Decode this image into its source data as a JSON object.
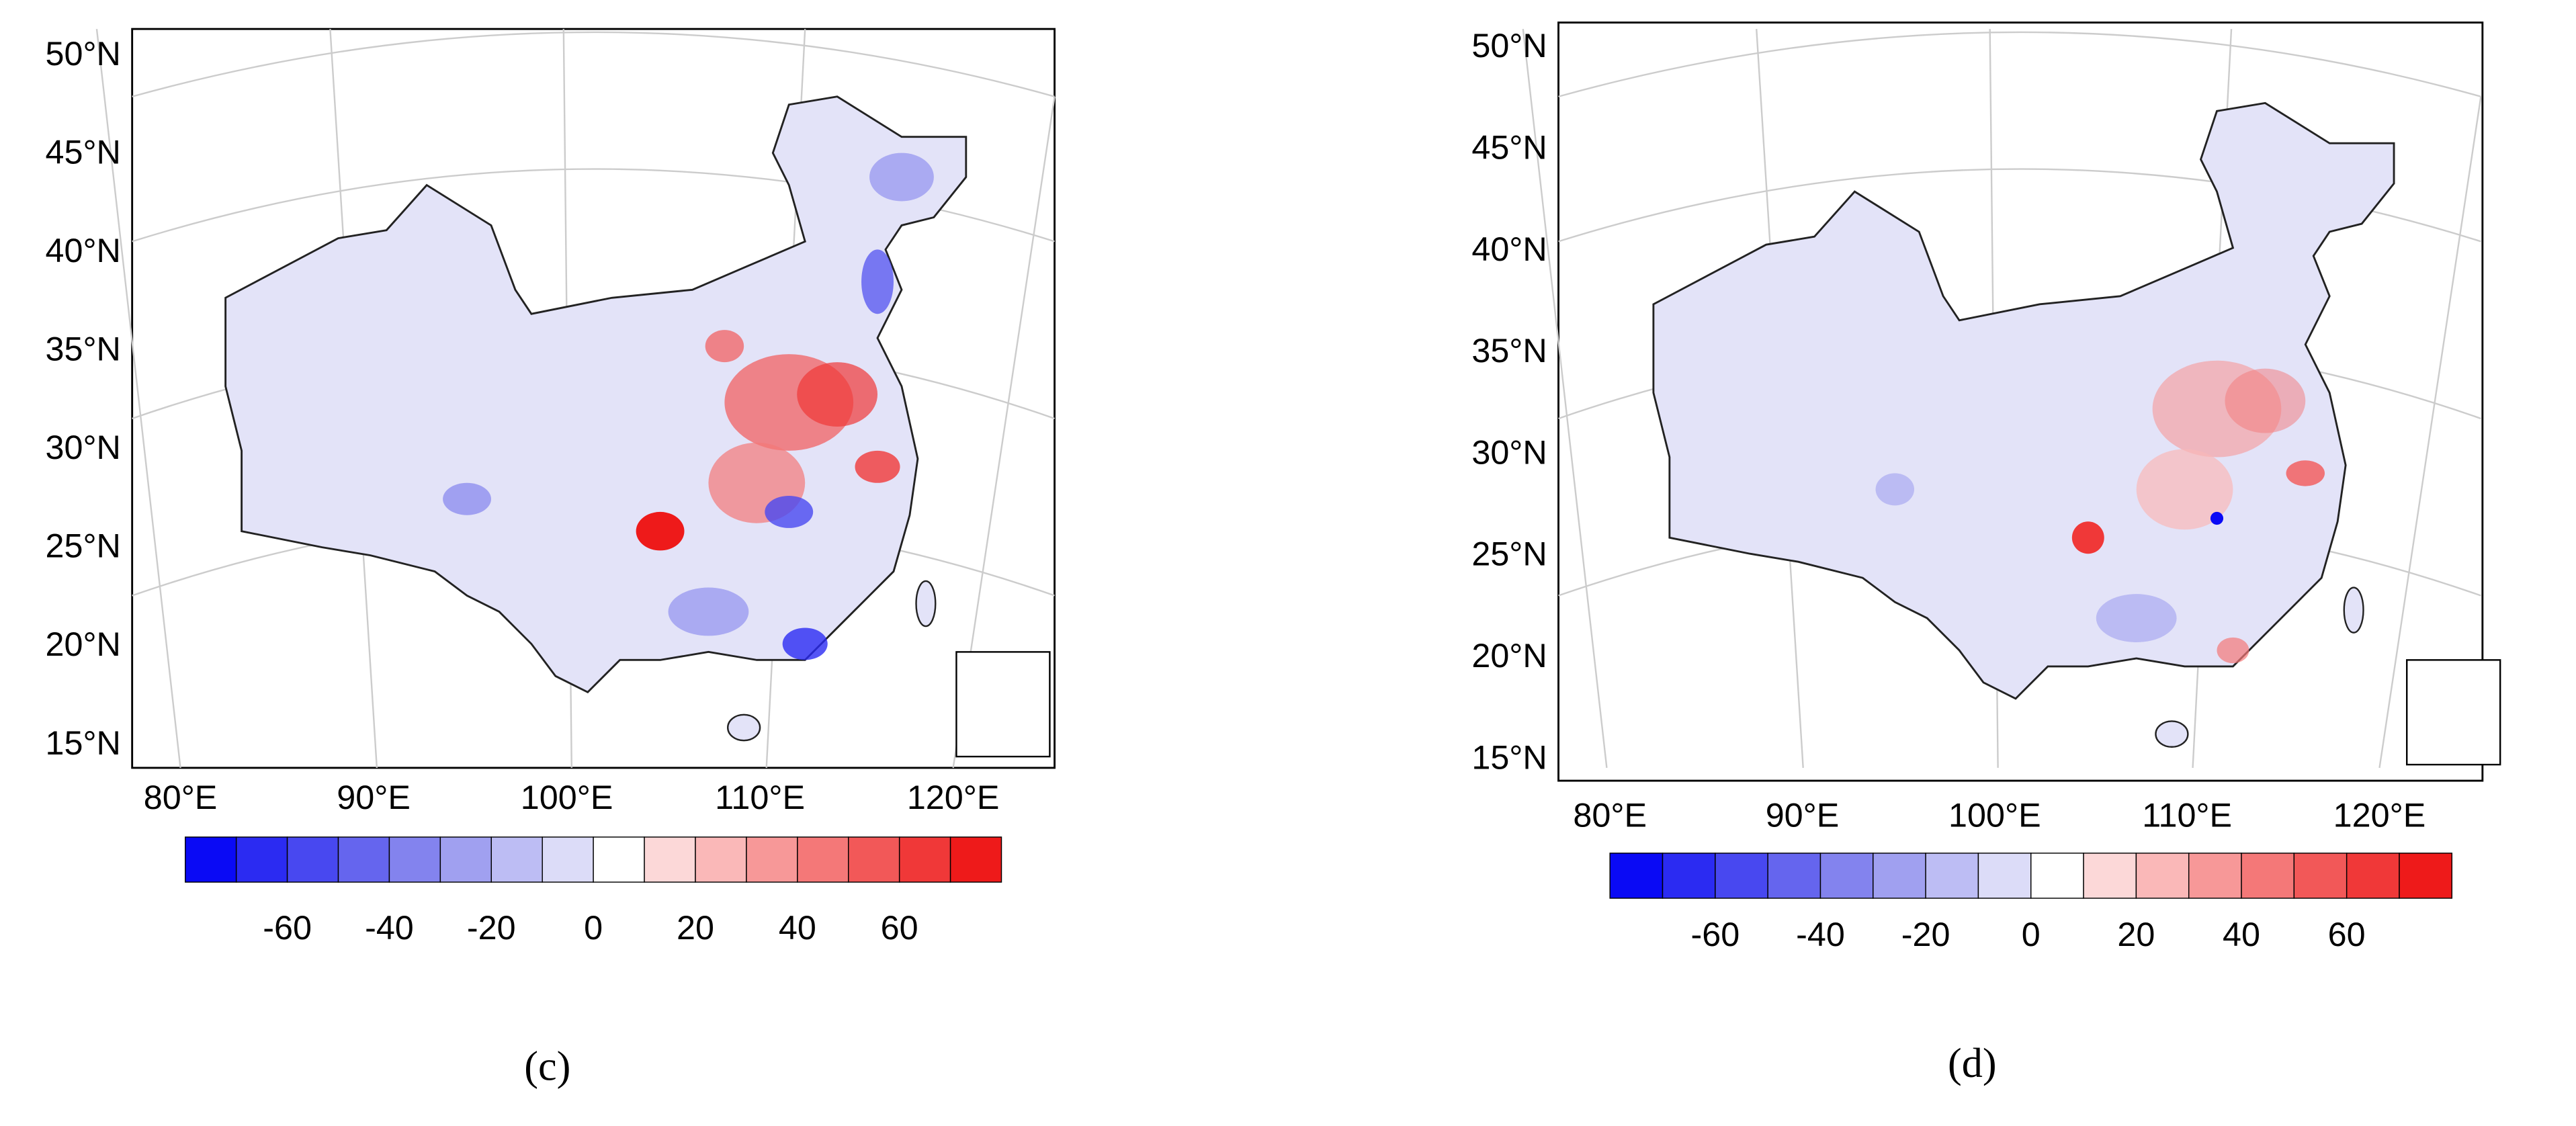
{
  "panels": [
    {
      "caption": "(c)",
      "lat_labels": [
        {
          "value": 50,
          "label": "50°N"
        },
        {
          "value": 45,
          "label": "45°N"
        },
        {
          "value": 40,
          "label": "40°N"
        },
        {
          "value": 35,
          "label": "35°N"
        },
        {
          "value": 30,
          "label": "30°N"
        },
        {
          "value": 25,
          "label": "25°N"
        },
        {
          "value": 20,
          "label": "20°N"
        },
        {
          "value": 15,
          "label": "15°N"
        }
      ],
      "lon_labels": [
        {
          "value": 80,
          "label": "80°E"
        },
        {
          "value": 90,
          "label": "90°E"
        },
        {
          "value": 100,
          "label": "100°E"
        },
        {
          "value": 110,
          "label": "110°E"
        },
        {
          "value": 120,
          "label": "120°E"
        }
      ],
      "colorbar": {
        "clim": [
          -80,
          80
        ],
        "ticks": [
          -60,
          -40,
          -20,
          0,
          20,
          40,
          60
        ],
        "colors": [
          "#0a0af5",
          "#2b2bf2",
          "#4848f0",
          "#6565ee",
          "#8383ee",
          "#a0a0f0",
          "#bdbdf4",
          "#dcdcf8",
          "#ffffff",
          "#fcd8d8",
          "#fab8b8",
          "#f79898",
          "#f47878",
          "#f25858",
          "#f03838",
          "#ee1a1a"
        ]
      }
    },
    {
      "caption": "(d)",
      "lat_labels": [
        {
          "value": 50,
          "label": "50°N"
        },
        {
          "value": 45,
          "label": "45°N"
        },
        {
          "value": 40,
          "label": "40°N"
        },
        {
          "value": 35,
          "label": "35°N"
        },
        {
          "value": 30,
          "label": "30°N"
        },
        {
          "value": 25,
          "label": "25°N"
        },
        {
          "value": 20,
          "label": "20°N"
        },
        {
          "value": 15,
          "label": "15°N"
        }
      ],
      "lon_labels": [
        {
          "value": 80,
          "label": "80°E"
        },
        {
          "value": 90,
          "label": "90°E"
        },
        {
          "value": 100,
          "label": "100°E"
        },
        {
          "value": 110,
          "label": "110°E"
        },
        {
          "value": 120,
          "label": "120°E"
        }
      ],
      "colorbar": {
        "clim": [
          -80,
          80
        ],
        "ticks": [
          -60,
          -40,
          -20,
          0,
          20,
          40,
          60
        ],
        "colors": [
          "#0a0af5",
          "#2b2bf2",
          "#4848f0",
          "#6565ee",
          "#8383ee",
          "#a0a0f0",
          "#bdbdf4",
          "#dcdcf8",
          "#ffffff",
          "#fcd8d8",
          "#fab8b8",
          "#f79898",
          "#f47878",
          "#f25858",
          "#f03838",
          "#ee1a1a"
        ]
      }
    }
  ]
}
